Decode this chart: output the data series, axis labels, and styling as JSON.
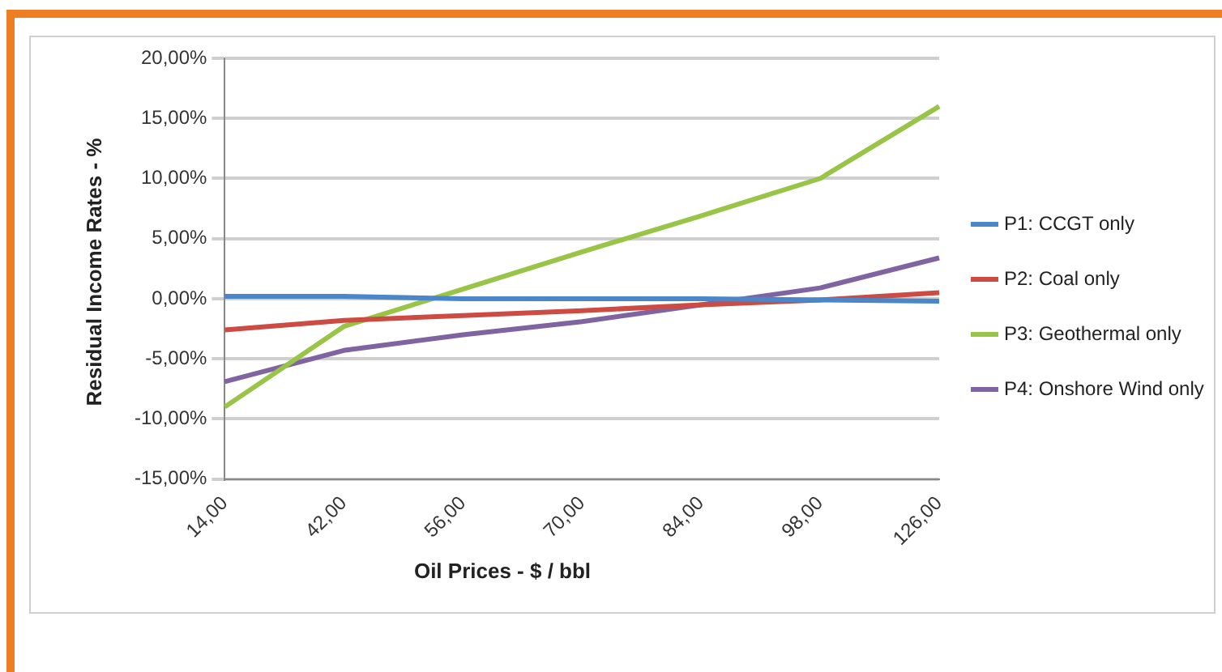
{
  "chart_data": {
    "type": "line",
    "xlabel": "Oil Prices - $ / bbl",
    "ylabel": "Residual Income Rates - %",
    "categories": [
      "14,00",
      "42,00",
      "56,00",
      "70,00",
      "84,00",
      "98,00",
      "126,00"
    ],
    "series": [
      {
        "name": "P1: CCGT only",
        "color": "#4a86c8",
        "values": [
          0.2,
          0.2,
          0,
          0,
          0,
          -0.1,
          -0.2
        ]
      },
      {
        "name": "P2: Coal only",
        "color": "#cc4b42",
        "values": [
          -2.6,
          -1.8,
          -1.4,
          -1,
          -0.5,
          -0.1,
          0.5
        ]
      },
      {
        "name": "P3: Geothermal only",
        "color": "#98c447",
        "values": [
          -9,
          -2.3,
          0.8,
          3.9,
          6.9,
          10,
          16
        ]
      },
      {
        "name": "P4: Onshore Wind only",
        "color": "#8064a2",
        "values": [
          -6.9,
          -4.3,
          -3,
          -1.9,
          -0.5,
          0.9,
          3.4
        ]
      }
    ],
    "ylim": [
      -15,
      20
    ],
    "yticks": [
      {
        "value": -15,
        "label": "-15,00%"
      },
      {
        "value": -10,
        "label": "-10,00%"
      },
      {
        "value": -5,
        "label": "-5,00%"
      },
      {
        "value": 0,
        "label": "0,00%"
      },
      {
        "value": 5,
        "label": "5,00%"
      },
      {
        "value": 10,
        "label": "10,00%"
      },
      {
        "value": 15,
        "label": "15,00%"
      },
      {
        "value": 20,
        "label": "20,00%"
      }
    ],
    "grid": "y",
    "legend": "right",
    "marker": "none",
    "line_style": "solid"
  }
}
